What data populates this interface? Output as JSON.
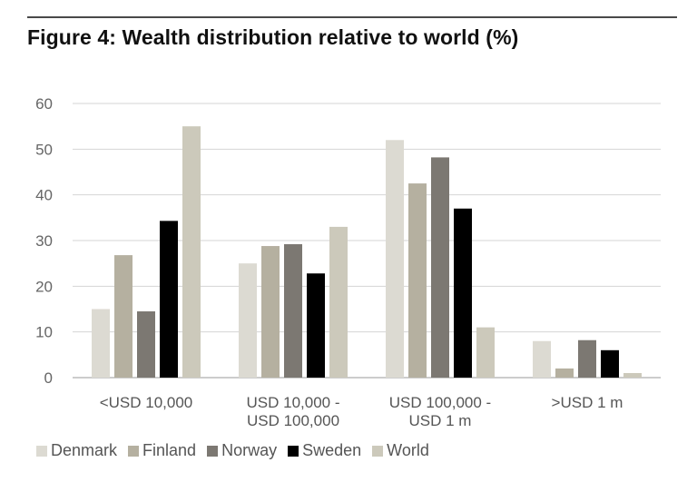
{
  "title": "Figure 4: Wealth distribution relative to world (%)",
  "chart_data": {
    "type": "bar",
    "title": "Figure 4: Wealth distribution relative to world (%)",
    "xlabel": "",
    "ylabel": "",
    "ylim": [
      0,
      60
    ],
    "yticks": [
      0,
      10,
      20,
      30,
      40,
      50,
      60
    ],
    "grid": true,
    "legend_position": "bottom",
    "categories": [
      [
        "<USD 10,000"
      ],
      [
        "USD 10,000 -",
        "USD 100,000"
      ],
      [
        "USD 100,000 -",
        "USD 1 m"
      ],
      [
        ">USD 1 m"
      ]
    ],
    "series": [
      {
        "name": "Denmark",
        "color": "#dcdad2",
        "values": [
          15,
          25,
          52,
          8
        ]
      },
      {
        "name": "Finland",
        "color": "#b5b0a0",
        "values": [
          26.8,
          28.8,
          42.5,
          2
        ]
      },
      {
        "name": "Norway",
        "color": "#7c7872",
        "values": [
          14.5,
          29.2,
          48.2,
          8.2
        ]
      },
      {
        "name": "Sweden",
        "color": "#000000",
        "values": [
          34.3,
          22.8,
          37,
          6
        ]
      },
      {
        "name": "World",
        "color": "#ccc9bb",
        "values": [
          55,
          33,
          11,
          1
        ]
      }
    ]
  }
}
